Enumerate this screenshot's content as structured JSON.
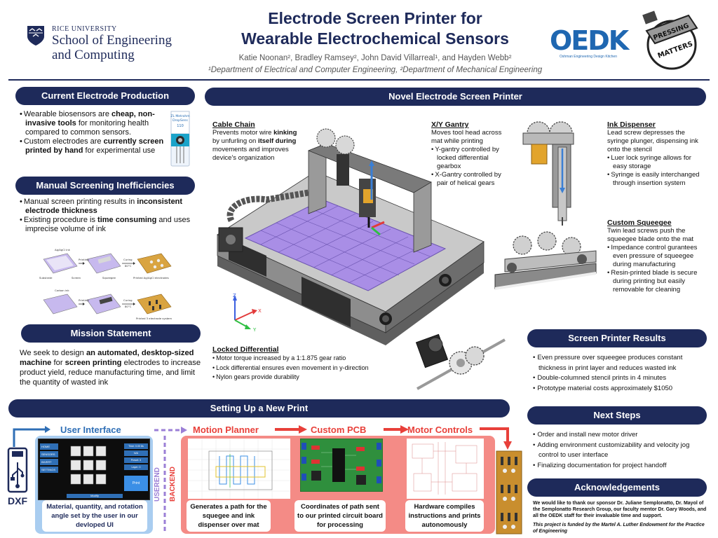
{
  "header": {
    "university": "RICE UNIVERSITY",
    "school_line1": "School of Engineering",
    "school_line2": "and Computing",
    "title_line1": "Electrode Screen Printer for",
    "title_line2": "Wearable Electrochemical Sensors",
    "authors": "Katie Noonan², Bradley Ramsey², John David Villarreal¹, and Hayden Webb²",
    "affiliations": "¹Department of Electrical and Computer Engineering, ²Department of Mechanical Engineering",
    "oedk_logo": "OEDK",
    "oedk_sub": "Oshman Engineering Design Kitchen",
    "team_logo_line1": "PRESSING",
    "team_logo_line2": "MATTERS"
  },
  "current": {
    "heading": "Current Electrode Production",
    "b1_pre": "Wearable biosensors are ",
    "b1_bold1": "cheap,",
    "b1_bold2": "non-invasive tools",
    "b1_post": " for monitoring health compared to common sensors.",
    "b2_pre": "Custom electrodes are ",
    "b2_bold": "currently screen printed by hand",
    "b2_post": " for experimental use",
    "strip_label1": "ZL Metrohm",
    "strip_label2": "DropSens",
    "strip_label3": "110"
  },
  "manual": {
    "heading": "Manual Screening Inefficiencies",
    "b1_pre": "Manual screen printing results in ",
    "b1_bold": "inconsistent electrode thickness",
    "b2_pre": "Existing procedure is ",
    "b2_bold": "time consuming",
    "b2_post": " and uses imprecise volume of ink",
    "fig_labels": [
      "Ag/AgCl ink",
      "Printing",
      "Curing",
      "80°C",
      "Substrate",
      "Screen",
      "Squeegee",
      "Printed Ag/AgCl electrodes",
      "Carbon ink",
      "Printing",
      "Curing",
      "80°C",
      "Printed 3 electrode system"
    ]
  },
  "mission": {
    "heading": "Mission Statement",
    "p1": "We seek to design ",
    "p_bold1": "an automated, desktop-sized machine",
    "p2": " for ",
    "p_bold2": "screen printing",
    "p3": " electrodes to increase product yield, reduce manufacturing time, and limit the quantity of wasted ink"
  },
  "novel": {
    "heading": "Novel Electrode Screen Printer",
    "cable_title": "Cable Chain",
    "cable_text_pre": "Prevents motor wire ",
    "cable_bold1": "kinking",
    "cable_text_mid": " by unfurling on ",
    "cable_bold2": "itself during",
    "cable_text_post": " movements and improves device's organization",
    "gantry_title": "X/Y Gantry",
    "gantry_text": "Moves tool head across mat while printing",
    "gantry_b1": "Y-gantry controlled by locked differential gearbox",
    "gantry_b2": "X-Gantry controlled by pair of helical gears",
    "ink_title": "Ink Dispenser",
    "ink_text": "Lead screw depresses the syringe plunger, dispensing ink onto the stencil",
    "ink_b1": "Luer lock syringe allows for easy storage",
    "ink_b2": "Syringe is easily interchanged through insertion system",
    "squeegee_title": "Custom Squeegee",
    "squeegee_text": "Twin lead screws push the squeegee blade onto the mat",
    "squeegee_b1": "Impedance control gurantees even pressure of squeegee during manufacturing",
    "squeegee_b2": "Resin-printed blade is secure during printing but easily removable for cleaning",
    "diff_title": "Locked Differential",
    "diff_b1": "Motor torque increased by a 1:1.875 gear ratio",
    "diff_b2": "Lock differential ensures even movement in y-direction",
    "diff_b3": "Nylon gears provide durability",
    "axis_x": "X",
    "axis_y": "Y",
    "axis_z": "Z"
  },
  "results": {
    "heading": "Screen Printer Results",
    "items": [
      "Even pressure over squeegee produces constant thickness in print layer and reduces wasted ink",
      "Double-columned stencil prints in 4 minutes",
      "Prototype material costs approximately $1050"
    ]
  },
  "next": {
    "heading": "Next Steps",
    "items": [
      "Order and install new motor driver",
      "Adding environment customizability and velocity jog control to user interface",
      "Finalizing documentation for project handoff"
    ]
  },
  "ack": {
    "heading": "Acknowledgements",
    "text": "We would like to thank our sponsor Dr. Juliane Semplonatto, Dr. Mayol of the Semplonatto Research Group, our faculty mentor Dr. Gary Woods, and all the OEDK staff for their invaluable time and support.",
    "funding": "This  project is funded by the Martel A. Luther Endowment for the Practice of Engineering"
  },
  "setup": {
    "heading": "Setting Up a New Print",
    "dxf_label": "DXF",
    "ui_label": "User Interface",
    "ui_caption": "Material, quantity, and rotation angle set by the user in our devloped UI",
    "ui_menu": [
      "HOME",
      "SENSORS",
      "INVERT",
      "SETTINGS"
    ],
    "ui_fields": [
      "Time: 0.00 8s",
      "N/A",
      "Preset: 3",
      "Layer: 0"
    ],
    "ui_print": "Print",
    "ui_modify": "Modify",
    "userend": "USEREND",
    "backend": "BACKEND",
    "motion_label": "Motion Planner",
    "motion_caption": "Generates a path for the squegee and ink dispenser over mat",
    "pcb_label": "Custom PCB",
    "pcb_caption": "Coordinates of path sent to our printed circuit board for processing",
    "motor_label": "Motor Controls",
    "motor_caption": "Hardware compiles instructions and prints autonomously"
  },
  "colors": {
    "navy": "#1e2a5a",
    "ui_blue": "#2f6fb6",
    "ui_bg": "#a9cdf0",
    "red": "#e8403a",
    "red_bg": "#f48b86",
    "lavender": "#9b7fd6",
    "mat_purple": "#a98ee6"
  }
}
